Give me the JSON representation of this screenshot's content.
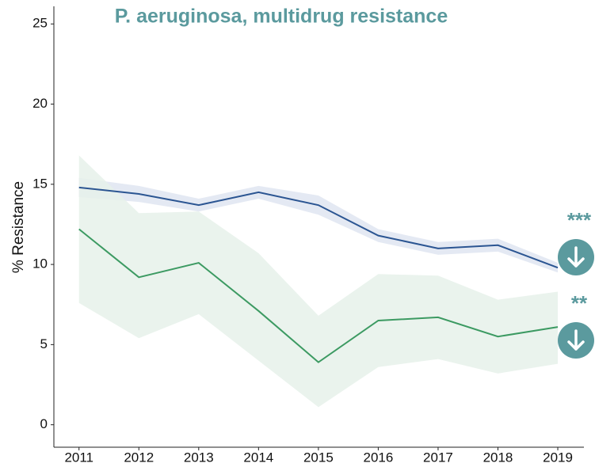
{
  "chart_data": {
    "type": "line",
    "title": "P. aeruginosa, multidrug resistance",
    "y_label": "% Resistance",
    "x": [
      2011,
      2012,
      2013,
      2014,
      2015,
      2016,
      2017,
      2018,
      2019
    ],
    "xlim": [
      2010.58,
      2019.41
    ],
    "xticks": [
      2011,
      2012,
      2013,
      2014,
      2015,
      2016,
      2017,
      2018,
      2019
    ],
    "ylim": [
      -1.4,
      26
    ],
    "yticks": [
      0,
      5,
      10,
      15,
      20,
      25
    ],
    "grid": false,
    "series": [
      {
        "color": "#2b5592",
        "band_color": "#dfe5f1",
        "values": [
          14.8,
          14.4,
          13.7,
          14.5,
          13.7,
          11.8,
          11.0,
          11.2,
          9.8
        ],
        "lower": [
          14.2,
          13.9,
          13.3,
          14.1,
          13.1,
          11.4,
          10.6,
          10.8,
          9.5
        ],
        "upper": [
          15.4,
          14.9,
          14.1,
          14.9,
          14.3,
          12.2,
          11.4,
          11.6,
          10.1
        ]
      },
      {
        "color": "#3c9a62",
        "band_color": "#e6f1ea",
        "values": [
          12.2,
          9.2,
          10.1,
          7.1,
          3.9,
          6.5,
          6.7,
          5.5,
          6.1
        ],
        "lower": [
          7.6,
          5.4,
          6.9,
          4.0,
          1.1,
          3.6,
          4.1,
          3.2,
          3.8
        ],
        "upper": [
          16.8,
          13.2,
          13.3,
          10.7,
          6.8,
          9.4,
          9.3,
          7.8,
          8.3
        ]
      }
    ],
    "annotations": [
      "***",
      "**"
    ],
    "annotation_color": "#5b9a9e"
  }
}
